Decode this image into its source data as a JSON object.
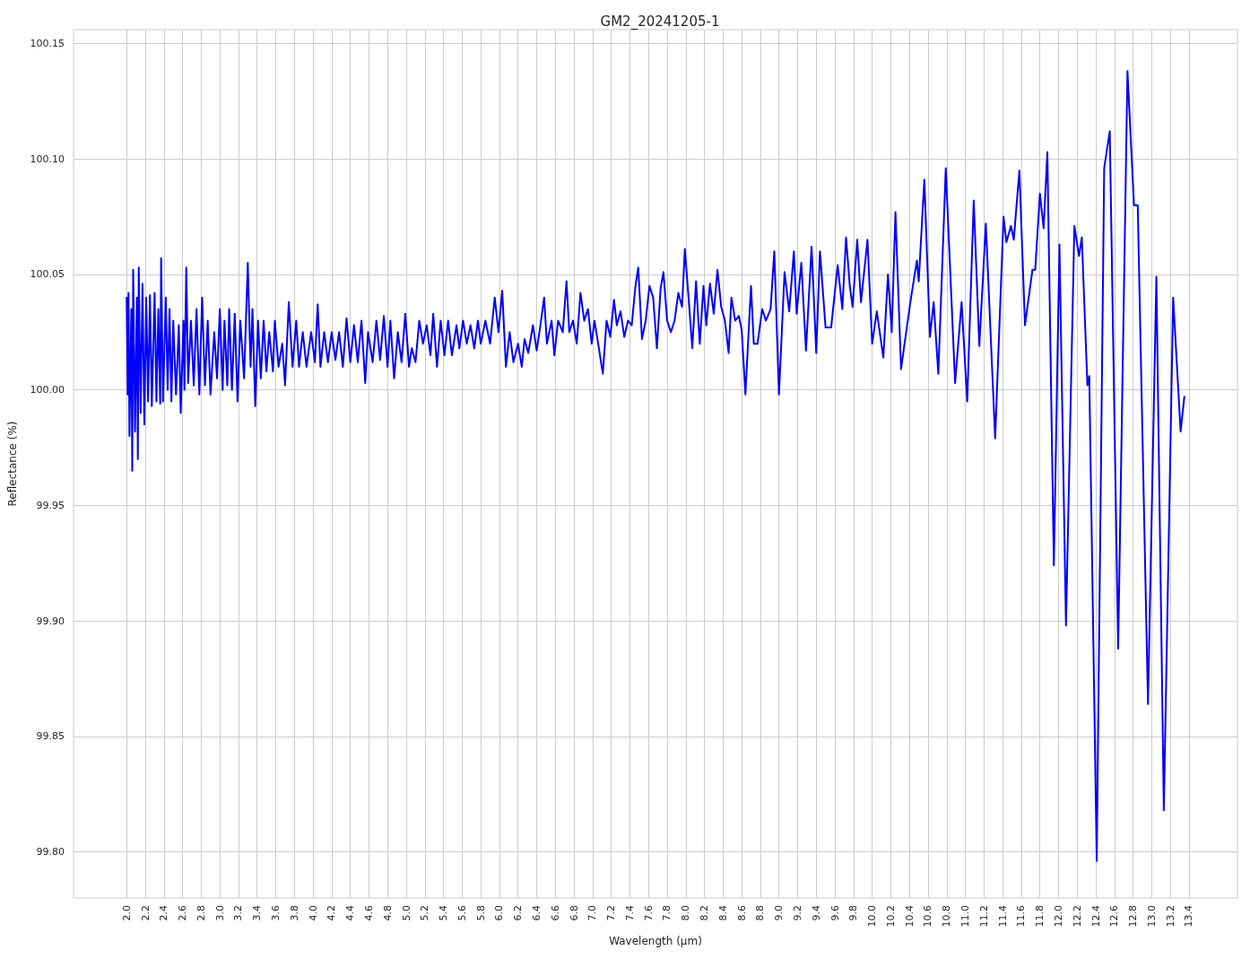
{
  "chart_data": {
    "type": "line",
    "title": "GM2_20241205-1",
    "xlabel": "Wavelength (μm)",
    "ylabel": "Reflectance (%)",
    "xlim": [
      1.43,
      13.92
    ],
    "ylim": [
      99.78,
      100.156
    ],
    "xticks": [
      {
        "value": 2.0,
        "label": "2.0"
      },
      {
        "value": 2.2,
        "label": "2.2"
      },
      {
        "value": 2.4,
        "label": "2.4"
      },
      {
        "value": 2.6,
        "label": "2.6"
      },
      {
        "value": 2.8,
        "label": "2.8"
      },
      {
        "value": 3.0,
        "label": "3.0"
      },
      {
        "value": 3.2,
        "label": "3.2"
      },
      {
        "value": 3.4,
        "label": "3.4"
      },
      {
        "value": 3.6,
        "label": "3.6"
      },
      {
        "value": 3.8,
        "label": "3.8"
      },
      {
        "value": 4.0,
        "label": "4.0"
      },
      {
        "value": 4.2,
        "label": "4.2"
      },
      {
        "value": 4.4,
        "label": "4.4"
      },
      {
        "value": 4.6,
        "label": "4.6"
      },
      {
        "value": 4.8,
        "label": "4.8"
      },
      {
        "value": 5.0,
        "label": "5.0"
      },
      {
        "value": 5.2,
        "label": "5.2"
      },
      {
        "value": 5.4,
        "label": "5.4"
      },
      {
        "value": 5.6,
        "label": "5.6"
      },
      {
        "value": 5.8,
        "label": "5.8"
      },
      {
        "value": 6.0,
        "label": "6.0"
      },
      {
        "value": 6.2,
        "label": "6.2"
      },
      {
        "value": 6.4,
        "label": "6.4"
      },
      {
        "value": 6.6,
        "label": "6.6"
      },
      {
        "value": 6.8,
        "label": "6.8"
      },
      {
        "value": 7.0,
        "label": "7.0"
      },
      {
        "value": 7.2,
        "label": "7.2"
      },
      {
        "value": 7.4,
        "label": "7.4"
      },
      {
        "value": 7.6,
        "label": "7.6"
      },
      {
        "value": 7.8,
        "label": "7.8"
      },
      {
        "value": 8.0,
        "label": "8.0"
      },
      {
        "value": 8.2,
        "label": "8.2"
      },
      {
        "value": 8.4,
        "label": "8.4"
      },
      {
        "value": 8.6,
        "label": "8.6"
      },
      {
        "value": 8.8,
        "label": "8.8"
      },
      {
        "value": 9.0,
        "label": "9.0"
      },
      {
        "value": 9.2,
        "label": "9.2"
      },
      {
        "value": 9.4,
        "label": "9.4"
      },
      {
        "value": 9.6,
        "label": "9.6"
      },
      {
        "value": 9.8,
        "label": "9.8"
      },
      {
        "value": 10.0,
        "label": "10.0"
      },
      {
        "value": 10.2,
        "label": "10.2"
      },
      {
        "value": 10.4,
        "label": "10.4"
      },
      {
        "value": 10.6,
        "label": "10.6"
      },
      {
        "value": 10.8,
        "label": "10.8"
      },
      {
        "value": 11.0,
        "label": "11.0"
      },
      {
        "value": 11.2,
        "label": "11.2"
      },
      {
        "value": 11.4,
        "label": "11.4"
      },
      {
        "value": 11.6,
        "label": "11.6"
      },
      {
        "value": 11.8,
        "label": "11.8"
      },
      {
        "value": 12.0,
        "label": "12.0"
      },
      {
        "value": 12.2,
        "label": "12.2"
      },
      {
        "value": 12.4,
        "label": "12.4"
      },
      {
        "value": 12.6,
        "label": "12.6"
      },
      {
        "value": 12.8,
        "label": "12.8"
      },
      {
        "value": 13.0,
        "label": "13.0"
      },
      {
        "value": 13.2,
        "label": "13.2"
      },
      {
        "value": 13.4,
        "label": "13.4"
      }
    ],
    "yticks": [
      {
        "value": 99.8,
        "label": "99.80"
      },
      {
        "value": 99.85,
        "label": "99.85"
      },
      {
        "value": 99.9,
        "label": "99.90"
      },
      {
        "value": 99.95,
        "label": "99.95"
      },
      {
        "value": 100.0,
        "label": "100.00"
      },
      {
        "value": 100.05,
        "label": "100.05"
      },
      {
        "value": 100.1,
        "label": "100.10"
      },
      {
        "value": 100.15,
        "label": "100.15"
      }
    ],
    "grid": true,
    "marker": "none",
    "line_style": "solid",
    "series": [
      {
        "color": "#0000ff",
        "x": [
          2.0,
          2.01,
          2.02,
          2.03,
          2.05,
          2.06,
          2.07,
          2.09,
          2.11,
          2.12,
          2.13,
          2.15,
          2.17,
          2.19,
          2.21,
          2.23,
          2.25,
          2.27,
          2.3,
          2.32,
          2.34,
          2.36,
          2.37,
          2.39,
          2.42,
          2.44,
          2.46,
          2.48,
          2.5,
          2.53,
          2.56,
          2.58,
          2.61,
          2.62,
          2.64,
          2.66,
          2.69,
          2.72,
          2.75,
          2.78,
          2.81,
          2.84,
          2.87,
          2.9,
          2.94,
          2.97,
          3.0,
          3.03,
          3.05,
          3.08,
          3.1,
          3.13,
          3.16,
          3.19,
          3.22,
          3.26,
          3.3,
          3.33,
          3.35,
          3.38,
          3.41,
          3.44,
          3.47,
          3.5,
          3.53,
          3.57,
          3.59,
          3.63,
          3.67,
          3.7,
          3.74,
          3.78,
          3.82,
          3.85,
          3.89,
          3.93,
          3.98,
          4.02,
          4.05,
          4.08,
          4.12,
          4.16,
          4.2,
          4.24,
          4.28,
          4.32,
          4.36,
          4.4,
          4.44,
          4.48,
          4.52,
          4.56,
          4.59,
          4.64,
          4.68,
          4.72,
          4.76,
          4.8,
          4.83,
          4.87,
          4.91,
          4.95,
          4.99,
          5.03,
          5.06,
          5.1,
          5.14,
          5.18,
          5.22,
          5.26,
          5.29,
          5.33,
          5.37,
          5.41,
          5.45,
          5.49,
          5.54,
          5.57,
          5.61,
          5.65,
          5.69,
          5.73,
          5.77,
          5.8,
          5.85,
          5.9,
          5.95,
          5.99,
          6.03,
          6.07,
          6.11,
          6.15,
          6.2,
          6.24,
          6.27,
          6.31,
          6.36,
          6.4,
          6.44,
          6.48,
          6.51,
          6.56,
          6.59,
          6.63,
          6.68,
          6.72,
          6.75,
          6.79,
          6.83,
          6.87,
          6.91,
          6.95,
          6.99,
          7.02,
          7.06,
          7.11,
          7.15,
          7.19,
          7.23,
          7.26,
          7.3,
          7.34,
          7.38,
          7.42,
          7.46,
          7.49,
          7.53,
          7.57,
          7.61,
          7.65,
          7.69,
          7.73,
          7.76,
          7.8,
          7.84,
          7.88,
          7.92,
          7.96,
          7.99,
          8.03,
          8.07,
          8.11,
          8.15,
          8.19,
          8.22,
          8.26,
          8.3,
          8.34,
          8.38,
          8.42,
          8.46,
          8.49,
          8.53,
          8.57,
          8.6,
          8.64,
          8.7,
          8.73,
          8.77,
          8.82,
          8.86,
          8.91,
          8.95,
          9.0,
          9.06,
          9.11,
          9.16,
          9.19,
          9.24,
          9.29,
          9.35,
          9.4,
          9.44,
          9.5,
          9.56,
          9.63,
          9.68,
          9.72,
          9.76,
          9.79,
          9.84,
          9.88,
          9.95,
          10.0,
          10.05,
          10.12,
          10.17,
          10.21,
          10.25,
          10.31,
          10.41,
          10.48,
          10.5,
          10.56,
          10.62,
          10.66,
          10.71,
          10.79,
          10.89,
          10.96,
          11.02,
          11.09,
          11.15,
          11.22,
          11.32,
          11.41,
          11.44,
          11.49,
          11.52,
          11.58,
          11.64,
          11.72,
          11.75,
          11.8,
          11.84,
          11.88,
          11.95,
          12.01,
          12.08,
          12.17,
          12.22,
          12.25,
          12.31,
          12.33,
          12.41,
          12.49,
          12.55,
          12.64,
          12.74,
          12.81,
          12.85,
          12.96,
          13.05,
          13.13,
          13.23,
          13.31,
          13.35
        ],
        "values": [
          100.04,
          99.998,
          100.042,
          99.98,
          100.035,
          99.965,
          100.052,
          99.982,
          100.04,
          99.97,
          100.053,
          99.99,
          100.046,
          99.985,
          100.04,
          99.995,
          100.041,
          99.993,
          100.042,
          99.995,
          100.035,
          99.994,
          100.057,
          99.995,
          100.04,
          100.0,
          100.035,
          99.995,
          100.03,
          99.998,
          100.028,
          99.99,
          100.03,
          100.0,
          100.053,
          100.003,
          100.03,
          100.002,
          100.035,
          99.998,
          100.04,
          100.002,
          100.03,
          99.998,
          100.025,
          100.005,
          100.035,
          100.0,
          100.03,
          100.002,
          100.035,
          100.0,
          100.033,
          99.995,
          100.03,
          100.005,
          100.055,
          100.01,
          100.035,
          99.993,
          100.03,
          100.005,
          100.03,
          100.008,
          100.025,
          100.008,
          100.03,
          100.01,
          100.02,
          100.002,
          100.038,
          100.01,
          100.03,
          100.01,
          100.025,
          100.01,
          100.025,
          100.012,
          100.037,
          100.01,
          100.025,
          100.012,
          100.025,
          100.013,
          100.025,
          100.01,
          100.031,
          100.012,
          100.028,
          100.012,
          100.03,
          100.003,
          100.025,
          100.012,
          100.03,
          100.013,
          100.032,
          100.01,
          100.03,
          100.005,
          100.025,
          100.012,
          100.033,
          100.01,
          100.018,
          100.012,
          100.03,
          100.02,
          100.028,
          100.015,
          100.033,
          100.01,
          100.03,
          100.015,
          100.03,
          100.015,
          100.028,
          100.018,
          100.03,
          100.02,
          100.028,
          100.018,
          100.03,
          100.02,
          100.03,
          100.02,
          100.04,
          100.025,
          100.043,
          100.01,
          100.025,
          100.012,
          100.02,
          100.01,
          100.022,
          100.016,
          100.028,
          100.017,
          100.028,
          100.04,
          100.02,
          100.03,
          100.015,
          100.03,
          100.025,
          100.047,
          100.025,
          100.03,
          100.02,
          100.042,
          100.03,
          100.035,
          100.02,
          100.03,
          100.02,
          100.007,
          100.03,
          100.023,
          100.039,
          100.028,
          100.034,
          100.023,
          100.03,
          100.028,
          100.045,
          100.053,
          100.022,
          100.03,
          100.045,
          100.04,
          100.018,
          100.044,
          100.051,
          100.03,
          100.025,
          100.03,
          100.042,
          100.036,
          100.061,
          100.04,
          100.018,
          100.047,
          100.02,
          100.045,
          100.028,
          100.046,
          100.033,
          100.052,
          100.036,
          100.03,
          100.016,
          100.04,
          100.03,
          100.032,
          100.026,
          99.998,
          100.045,
          100.02,
          100.02,
          100.035,
          100.03,
          100.035,
          100.06,
          99.998,
          100.051,
          100.034,
          100.06,
          100.033,
          100.055,
          100.017,
          100.062,
          100.016,
          100.06,
          100.027,
          100.027,
          100.054,
          100.035,
          100.066,
          100.045,
          100.036,
          100.065,
          100.038,
          100.065,
          100.02,
          100.034,
          100.014,
          100.05,
          100.025,
          100.077,
          100.009,
          100.038,
          100.056,
          100.047,
          100.091,
          100.023,
          100.038,
          100.007,
          100.096,
          100.003,
          100.038,
          99.995,
          100.082,
          100.019,
          100.072,
          99.979,
          100.075,
          100.064,
          100.071,
          100.065,
          100.095,
          100.028,
          100.052,
          100.052,
          100.085,
          100.07,
          100.103,
          99.924,
          100.063,
          99.898,
          100.071,
          100.058,
          100.066,
          100.002,
          100.006,
          99.796,
          100.096,
          100.112,
          99.888,
          100.138,
          100.08,
          100.08,
          99.864,
          100.049,
          99.818,
          100.04,
          99.982,
          99.997
        ]
      }
    ]
  }
}
